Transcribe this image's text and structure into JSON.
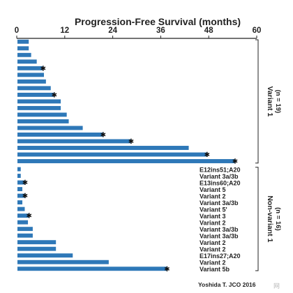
{
  "chart_data": {
    "type": "bar",
    "orientation": "horizontal",
    "title": "Progression-Free Survival (months)",
    "xlim": [
      0,
      60
    ],
    "xticks": [
      0,
      12,
      24,
      36,
      48,
      60
    ],
    "axis_position": "top",
    "colors": {
      "bar": "#2e78b8",
      "text": "#222222"
    },
    "groups": [
      {
        "name": "Variant 1",
        "n_label": "(n = 19)",
        "bars": [
          {
            "value": 3,
            "label": "",
            "censored": false
          },
          {
            "value": 3,
            "label": "",
            "censored": false
          },
          {
            "value": 3.6,
            "label": "",
            "censored": false
          },
          {
            "value": 5,
            "label": "",
            "censored": false
          },
          {
            "value": 6.5,
            "label": "",
            "censored": true
          },
          {
            "value": 6.8,
            "label": "",
            "censored": false
          },
          {
            "value": 7.3,
            "label": "",
            "censored": false
          },
          {
            "value": 8.5,
            "label": "",
            "censored": false
          },
          {
            "value": 9.3,
            "label": "",
            "censored": true
          },
          {
            "value": 11,
            "label": "",
            "censored": false
          },
          {
            "value": 11,
            "label": "",
            "censored": false
          },
          {
            "value": 12.5,
            "label": "",
            "censored": false
          },
          {
            "value": 13,
            "label": "",
            "censored": false
          },
          {
            "value": 16.5,
            "label": "",
            "censored": false
          },
          {
            "value": 21.5,
            "label": "",
            "censored": true
          },
          {
            "value": 28.5,
            "label": "",
            "censored": true
          },
          {
            "value": 43,
            "label": "",
            "censored": false
          },
          {
            "value": 47.5,
            "label": "",
            "censored": true
          },
          {
            "value": 54.5,
            "label": "",
            "censored": true
          }
        ]
      },
      {
        "name": "Non-variant 1",
        "n_label": "(n = 16)",
        "bars": [
          {
            "value": 1,
            "label": "E12ins51;A20",
            "censored": false
          },
          {
            "value": 1,
            "label": "Variant 3a/3b",
            "censored": false
          },
          {
            "value": 2,
            "label": "E13ins60;A20",
            "censored": true
          },
          {
            "value": 1.4,
            "label": "Variant 5",
            "censored": false
          },
          {
            "value": 2,
            "label": "Variant 2",
            "censored": true
          },
          {
            "value": 1.4,
            "label": "Variant 3a/3b",
            "censored": false
          },
          {
            "value": 2,
            "label": "Variant 5'",
            "censored": false
          },
          {
            "value": 3,
            "label": "Variant 3",
            "censored": true
          },
          {
            "value": 2.8,
            "label": "Variant 2",
            "censored": false
          },
          {
            "value": 4,
            "label": "Variant 3a/3b",
            "censored": false
          },
          {
            "value": 4,
            "label": "Variant 3a/3b",
            "censored": false
          },
          {
            "value": 9.8,
            "label": "Variant 2",
            "censored": false
          },
          {
            "value": 9.8,
            "label": "Variant 2",
            "censored": false
          },
          {
            "value": 14,
            "label": "E17ins27;A20",
            "censored": false
          },
          {
            "value": 23,
            "label": "Variant 2",
            "censored": false
          },
          {
            "value": 37.5,
            "label": "Variant 5b",
            "censored": true
          }
        ]
      }
    ],
    "citation": "Yoshida T. JCO 2016",
    "watermark": "网"
  }
}
